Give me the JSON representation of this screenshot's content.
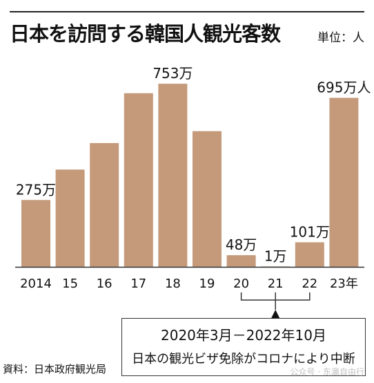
{
  "title": "日本を訪問する韓国人観光客数",
  "unit_label": "単位：人",
  "source": "資料：日本政府観光局",
  "note": {
    "period": "2020年3月－2022年10月",
    "description": "日本の観光ビザ免除がコロナにより中断"
  },
  "watermark": "公众号 · 东瀛自由行",
  "colors": {
    "bar": "#c49a7a",
    "axis": "#333333",
    "text": "#111111"
  },
  "chart_data": {
    "type": "bar",
    "title": "日本を訪問する韓国人観光客数",
    "unit": "人",
    "categories": [
      "2014",
      "15",
      "16",
      "17",
      "18",
      "19",
      "20",
      "21",
      "22",
      "23年"
    ],
    "values": [
      2750000,
      4000000,
      5090000,
      7140000,
      7530000,
      5580000,
      480000,
      10000,
      1010000,
      6950000
    ],
    "data_labels": [
      "275万",
      "",
      "",
      "",
      "753万",
      "",
      "48万",
      "1万",
      "101万",
      "695万人"
    ],
    "ylim": [
      0,
      8300000
    ],
    "grid": false,
    "legend": "none",
    "bracket_categories": [
      "20",
      "21",
      "22"
    ]
  }
}
